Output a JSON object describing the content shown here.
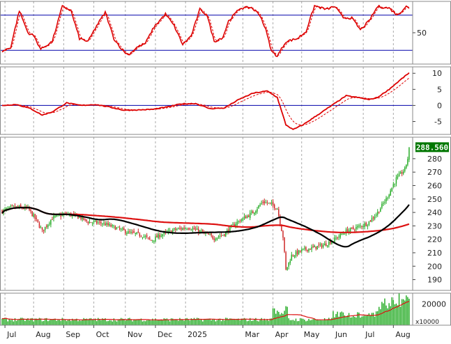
{
  "chart_data": {
    "type": "candlestick",
    "months": [
      "Jul",
      "Aug",
      "Sep",
      "Oct",
      "Nov",
      "Dec",
      "2025",
      "Mar",
      "Apr",
      "May",
      "Jun",
      "Jul",
      "Aug"
    ],
    "stoch_panel": {
      "yticks": [
        50
      ],
      "levels": [
        80,
        20
      ]
    },
    "macd_panel": {
      "yticks": [
        10,
        5,
        0,
        -5
      ]
    },
    "price_panel": {
      "yticks": [
        280,
        270,
        260,
        250,
        240,
        230,
        220,
        210,
        200,
        190
      ],
      "ylim": [
        182,
        296
      ],
      "last_price": "288.560"
    },
    "volume_panel": {
      "yticks": [
        "20000"
      ],
      "multiplier": "x10000"
    },
    "colors": {
      "up": "#22aa22",
      "down": "#cc2222",
      "ma_fast": "#000000",
      "ma_slow": "#dd1111",
      "indicator": "#dd0000",
      "signal": "#dd0000",
      "level": "#0000aa",
      "grid": "#aaaaaa",
      "last_bg": "#007700",
      "volume": "#22aa22"
    }
  }
}
